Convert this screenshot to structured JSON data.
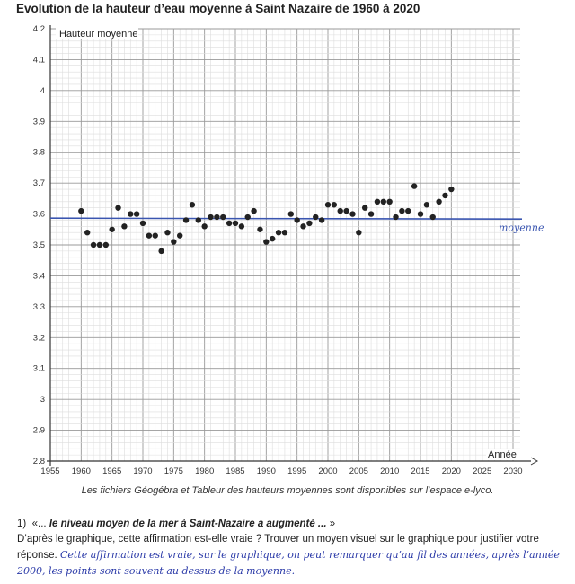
{
  "chart_data": {
    "type": "scatter",
    "title": "Evolution de la hauteur d’eau moyenne à Saint Nazaire de 1960 à 2020",
    "xlabel": "Année",
    "ylabel": "Hauteur moyenne",
    "xlim": [
      1955,
      2030
    ],
    "ylim": [
      2.8,
      4.2
    ],
    "x_ticks": [
      "1955",
      "1960",
      "1965",
      "1970",
      "1975",
      "1980",
      "1985",
      "1990",
      "1995",
      "2000",
      "2005",
      "2010",
      "2015",
      "2020",
      "2025",
      "2030"
    ],
    "y_ticks": [
      "2.8",
      "2.9",
      "3",
      "3.1",
      "3.2",
      "3.3",
      "3.4",
      "3.5",
      "3.6",
      "3.7",
      "3.8",
      "3.9",
      "4",
      "4.1",
      "4.2"
    ],
    "grid": true,
    "x": [
      1960,
      1961,
      1962,
      1963,
      1964,
      1965,
      1966,
      1967,
      1968,
      1969,
      1970,
      1971,
      1972,
      1973,
      1974,
      1975,
      1976,
      1977,
      1978,
      1979,
      1980,
      1981,
      1982,
      1983,
      1984,
      1985,
      1986,
      1987,
      1988,
      1989,
      1990,
      1991,
      1992,
      1993,
      1994,
      1995,
      1996,
      1997,
      1998,
      1999,
      2000,
      2001,
      2002,
      2003,
      2004,
      2005,
      2006,
      2007,
      2008,
      2009,
      2010,
      2011,
      2012,
      2013,
      2014,
      2015,
      2016,
      2017,
      2018,
      2019,
      2020
    ],
    "y": [
      3.61,
      3.54,
      3.5,
      3.5,
      3.5,
      3.55,
      3.62,
      3.56,
      3.6,
      3.6,
      3.57,
      3.53,
      3.53,
      3.48,
      3.54,
      3.51,
      3.53,
      3.58,
      3.63,
      3.58,
      3.56,
      3.59,
      3.59,
      3.59,
      3.57,
      3.57,
      3.56,
      3.59,
      3.61,
      3.55,
      3.51,
      3.52,
      3.54,
      3.54,
      3.6,
      3.58,
      3.56,
      3.57,
      3.59,
      3.58,
      3.63,
      3.63,
      3.61,
      3.61,
      3.6,
      3.54,
      3.62,
      3.6,
      3.64,
      3.64,
      3.64,
      3.59,
      3.61,
      3.61,
      3.69,
      3.6,
      3.63,
      3.59,
      3.64,
      3.66,
      3.68
    ],
    "mean_line": {
      "value": 3.585,
      "label": "moyenne",
      "color": "#3a55b0"
    },
    "point_color": "#222222"
  },
  "caption": "Les fichiers Géogébra et Tableur des hauteurs moyennes sont disponibles sur l’espace e-lyco.",
  "question": {
    "number": "1)",
    "quote_open": "«...",
    "quote": "le niveau moyen de la mer à Saint-Nazaire a augmenté ...",
    "quote_close": "»",
    "prompt": "D’après le graphique, cette affirmation est-elle vraie ? Trouver un moyen visuel sur le graphique pour justifier votre réponse.",
    "handwritten_answer": "Cette affirmation est vraie, sur le graphique, on peut remarquer qu’au fil des années, après l’année 2000, les points sont souvent au dessus de la moyenne."
  }
}
